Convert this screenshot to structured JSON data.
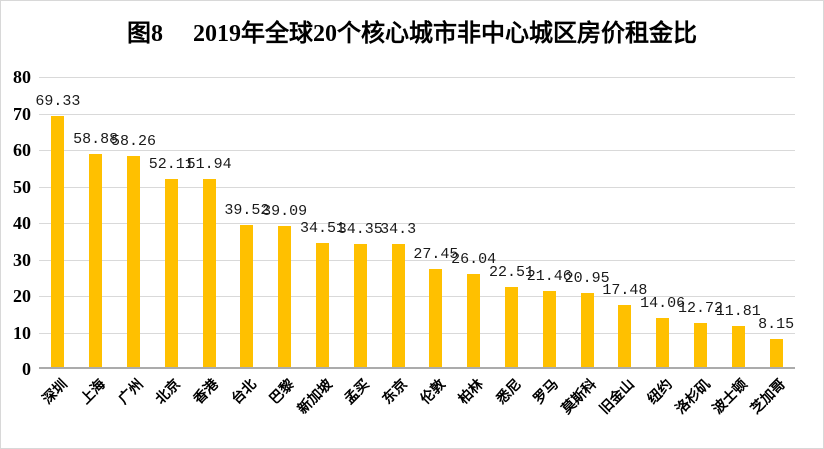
{
  "figure": {
    "title_prefix": "图8",
    "title_text": "2019年全球20个核心城市非中心城区房价租金比"
  },
  "chart_data": {
    "type": "bar",
    "title": "图8 2019年全球20个核心城市非中心城区房价租金比",
    "categories": [
      "深圳",
      "上海",
      "广州",
      "北京",
      "香港",
      "台北",
      "巴黎",
      "新加坡",
      "孟买",
      "东京",
      "伦敦",
      "柏林",
      "悉尼",
      "罗马",
      "莫斯科",
      "旧金山",
      "纽约",
      "洛杉矶",
      "波士顿",
      "芝加哥"
    ],
    "values": [
      69.33,
      58.88,
      58.26,
      52.11,
      51.94,
      39.52,
      39.09,
      34.51,
      34.35,
      34.3,
      27.45,
      26.04,
      22.51,
      21.46,
      20.95,
      17.48,
      14.06,
      12.72,
      11.81,
      8.15
    ],
    "value_labels": [
      "69.33",
      "58.88",
      "58.26",
      "52.11",
      "51.94",
      "39.52",
      "39.09",
      "34.51",
      "34.35",
      "34.3",
      "27.45",
      "26.04",
      "22.51",
      "21.46",
      "20.95",
      "17.48",
      "14.06",
      "12.72",
      "11.81",
      "8.15"
    ],
    "xlabel": "",
    "ylabel": "",
    "ylim": [
      0,
      80
    ],
    "yticks": [
      0,
      10,
      20,
      30,
      40,
      50,
      60,
      70,
      80
    ],
    "grid": true,
    "legend": "none",
    "x_label_rotation_deg": -45,
    "bar_color": "#FFC000",
    "gridline_color": "#D9D9D9",
    "axis_line_color": "#ABABAB",
    "text_color": "#000000"
  }
}
